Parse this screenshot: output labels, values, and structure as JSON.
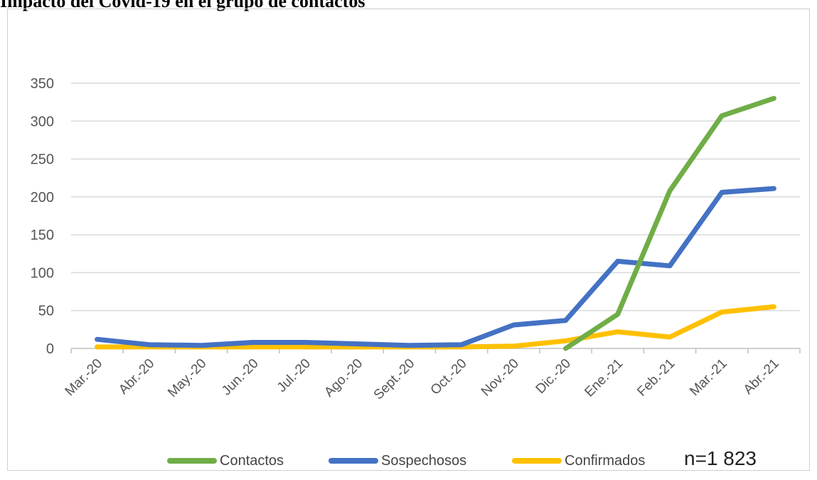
{
  "header": {
    "text": "...p... ...nt... ...gr... ..."
  },
  "note": "n=1 823",
  "chart_data": {
    "type": "line",
    "categories": [
      "Mar.-20",
      "Abr.-20",
      "May.-20",
      "Jun.-20",
      "Jul.-20",
      "Ago.-20",
      "Sept.-20",
      "Oct.-20",
      "Nov.-20",
      "Dic.-20",
      "Ene.-21",
      "Feb.-21",
      "Mar.-21",
      "Abr.-21"
    ],
    "ylim": [
      0,
      350
    ],
    "yticks": [
      0,
      50,
      100,
      150,
      200,
      250,
      300,
      350
    ],
    "grid": true,
    "legend_position": "bottom",
    "series": [
      {
        "name": "Contactos",
        "color": "#70ad47",
        "start_index": 9,
        "values": [
          null,
          null,
          null,
          null,
          null,
          null,
          null,
          null,
          null,
          0,
          45,
          208,
          307,
          330
        ]
      },
      {
        "name": "Sospechosos",
        "color": "#4472c4",
        "values": [
          12,
          5,
          4,
          8,
          8,
          6,
          4,
          5,
          31,
          37,
          115,
          109,
          206,
          211
        ]
      },
      {
        "name": "Confirmados",
        "color": "#ffc000",
        "values": [
          2,
          2,
          2,
          2,
          2,
          2,
          2,
          2,
          3,
          10,
          22,
          15,
          48,
          55
        ]
      }
    ]
  }
}
